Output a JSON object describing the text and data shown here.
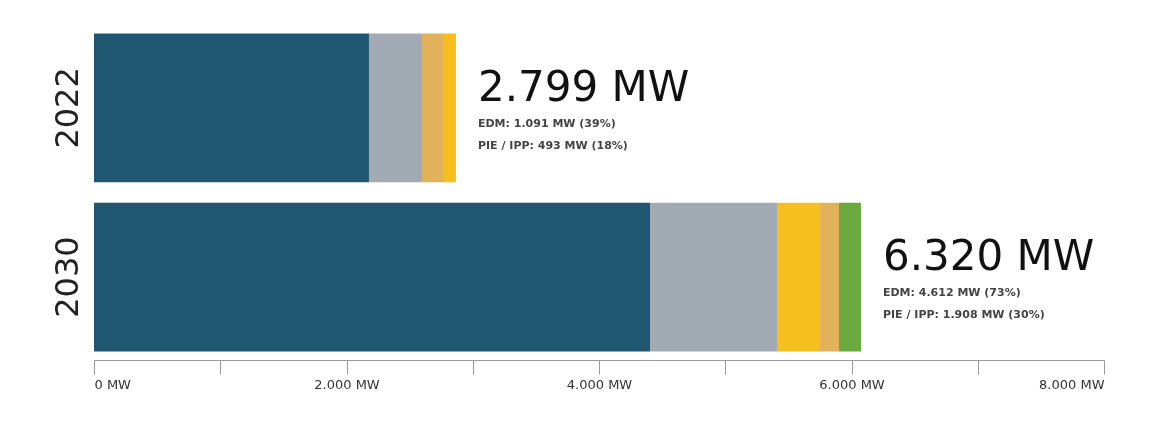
{
  "chart_data": {
    "type": "bar",
    "orientation": "horizontal",
    "stacked": true,
    "categories": [
      "2022",
      "2030"
    ],
    "series": [
      {
        "color": "#1f5670",
        "values": [
          2178,
          4404
        ]
      },
      {
        "color": "#a2abb3",
        "values": [
          420,
          1006
        ]
      },
      {
        "color": "#e2b25a",
        "values": [
          174,
          null
        ]
      },
      {
        "color": "#f7bf1e",
        "values": [
          95,
          340
        ]
      },
      {
        "color": "#e2b25a",
        "values": [
          null,
          151
        ]
      },
      {
        "color": "#6aaa3e",
        "values": [
          null,
          174
        ]
      }
    ],
    "xlim": [
      0,
      8000
    ],
    "xticks": [
      {
        "value": 0,
        "label": "0 MW"
      },
      {
        "value": 1000,
        "label": null
      },
      {
        "value": 2000,
        "label": "2.000 MW"
      },
      {
        "value": 3000,
        "label": null
      },
      {
        "value": 4000,
        "label": "4.000 MW"
      },
      {
        "value": 5000,
        "label": null
      },
      {
        "value": 6000,
        "label": "6.000 MW"
      },
      {
        "value": 7000,
        "label": null
      },
      {
        "value": 8000,
        "label": "8.000 MW"
      }
    ],
    "grid": false,
    "annotations": [
      "2.799 MW",
      "EDM: 1.091 MW (39%)",
      "PIE / IPP: 493 MW (18%)",
      "6.320 MW",
      "EDM: 4.612 MW (73%)",
      "PIE / IPP: 1.908 MW (30%)"
    ]
  }
}
